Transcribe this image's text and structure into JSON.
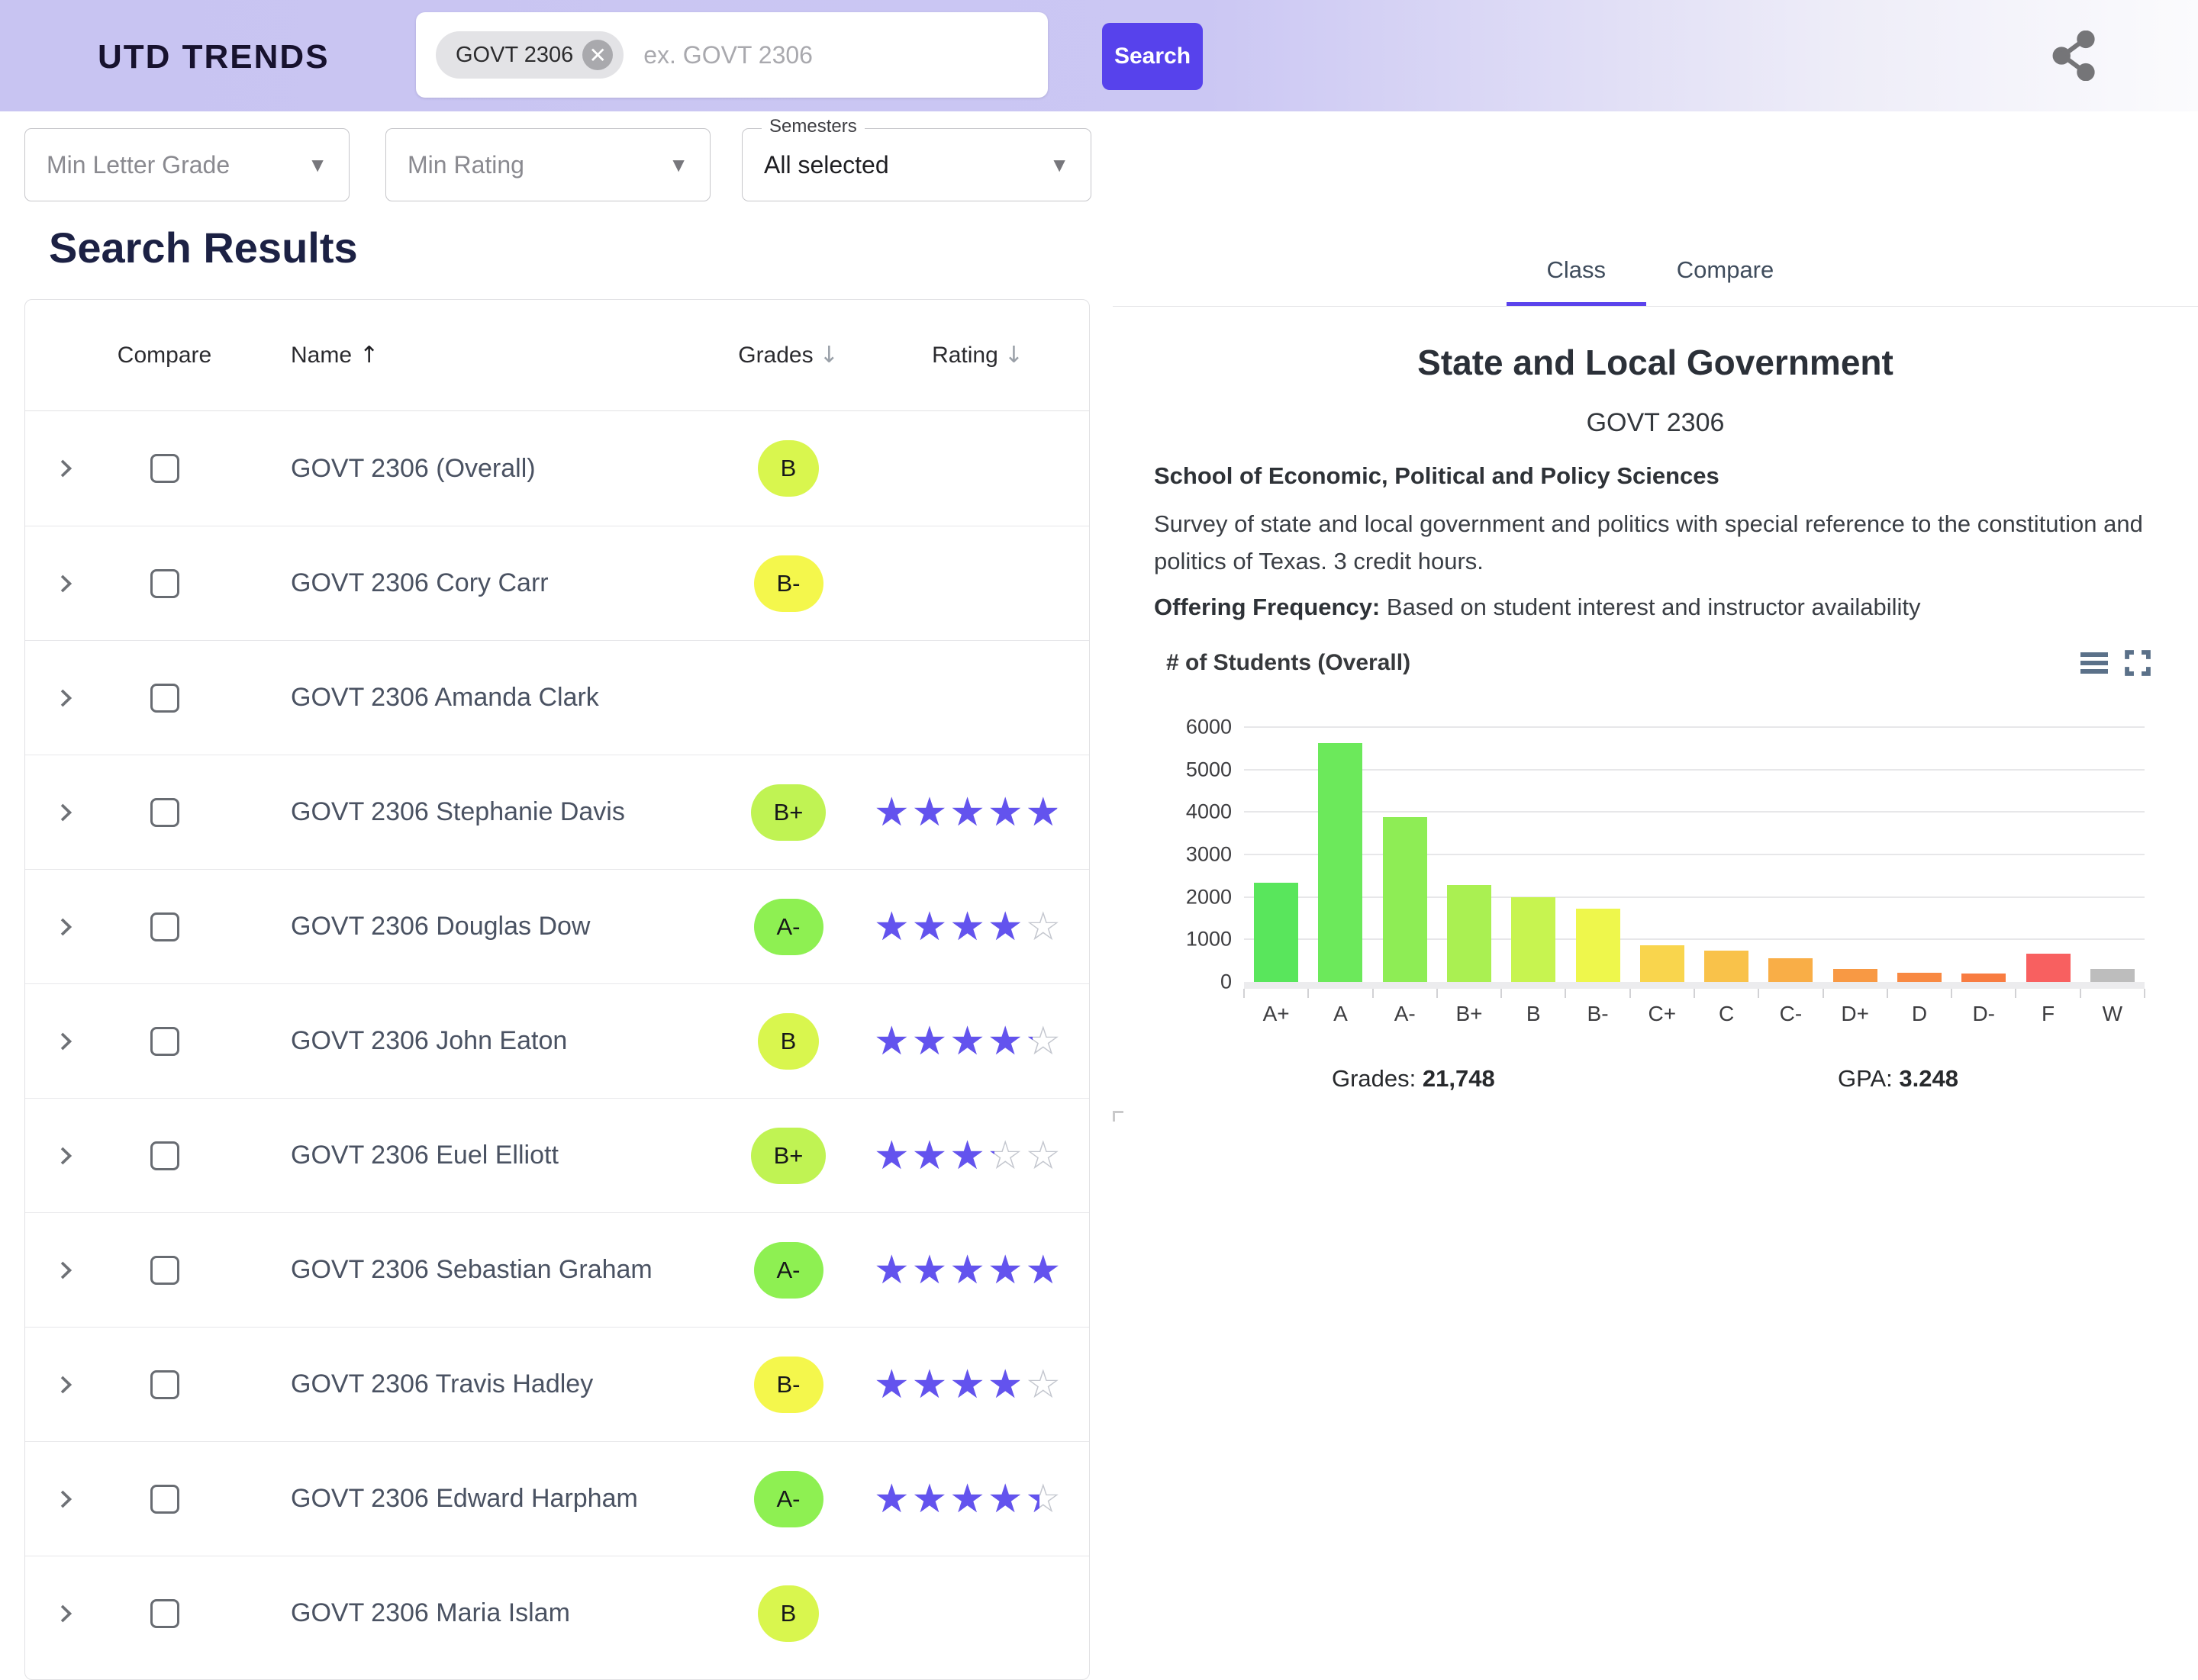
{
  "header": {
    "logo": "UTD TRENDS",
    "search_chip": "GOVT 2306",
    "chip_remove_icon": "close-icon",
    "search_placeholder": "ex. GOVT 2306",
    "search_button": "Search",
    "share_icon": "share-icon"
  },
  "filters": [
    {
      "placeholder": "Min Letter Grade"
    },
    {
      "placeholder": "Min Rating"
    },
    {
      "label": "Semesters",
      "value": "All selected"
    }
  ],
  "results": {
    "title": "Search Results",
    "columns": {
      "compare": "Compare",
      "name": "Name",
      "grades": "Grades",
      "rating": "Rating"
    },
    "sort_asc_arrow": "↑",
    "sort_desc_arrow": "↓",
    "rows": [
      {
        "name": "GOVT 2306 (Overall)",
        "grade": "B",
        "grade_color": "#d9f64e",
        "rating": null
      },
      {
        "name": "GOVT 2306 Cory Carr",
        "grade": "B-",
        "grade_color": "#f4f74c",
        "rating": null
      },
      {
        "name": "GOVT 2306 Amanda Clark",
        "grade": null,
        "grade_color": null,
        "rating": null
      },
      {
        "name": "GOVT 2306 Stephanie Davis",
        "grade": "B+",
        "grade_color": "#c0f353",
        "rating": 4.9
      },
      {
        "name": "GOVT 2306 Douglas Dow",
        "grade": "A-",
        "grade_color": "#8ef052",
        "rating": 4.0
      },
      {
        "name": "GOVT 2306 John Eaton",
        "grade": "B",
        "grade_color": "#d9f64e",
        "rating": 4.2
      },
      {
        "name": "GOVT 2306 Euel Elliott",
        "grade": "B+",
        "grade_color": "#c0f353",
        "rating": 3.2
      },
      {
        "name": "GOVT 2306 Sebastian Graham",
        "grade": "A-",
        "grade_color": "#8ef052",
        "rating": 5.0
      },
      {
        "name": "GOVT 2306 Travis Hadley",
        "grade": "B-",
        "grade_color": "#f4f74c",
        "rating": 3.9
      },
      {
        "name": "GOVT 2306 Edward Harpham",
        "grade": "A-",
        "grade_color": "#8ef052",
        "rating": 4.4
      },
      {
        "name": "GOVT 2306 Maria Islam",
        "grade": "B",
        "grade_color": "#d9f64e",
        "rating": null
      }
    ]
  },
  "detail": {
    "tabs": [
      "Class",
      "Compare"
    ],
    "active_tab": "Class",
    "title": "State and Local Government",
    "course_code": "GOVT 2306",
    "school": "School of Economic, Political and Policy Sciences",
    "description": "Survey of state and local government and politics with special reference to the constitution and politics of Texas. 3 credit hours.",
    "offering_frequency_label": "Offering Frequency:",
    "offering_frequency": "Based on student interest and instructor availability",
    "grades_label": "Grades:",
    "grades_total": "21,748",
    "gpa_label": "GPA:",
    "gpa": "3.248",
    "menu_icon": "hamburger-menu-icon",
    "fullscreen_icon": "fullscreen-icon"
  },
  "chart_data": {
    "type": "bar",
    "title": "# of Students (Overall)",
    "categories": [
      "A+",
      "A",
      "A-",
      "B+",
      "B",
      "B-",
      "C+",
      "C",
      "C-",
      "D+",
      "D",
      "D-",
      "F",
      "W"
    ],
    "values": [
      2340,
      5620,
      3880,
      2280,
      1990,
      1720,
      870,
      730,
      550,
      300,
      220,
      200,
      660,
      300
    ],
    "bar_colors": [
      "#59e65c",
      "#6ce95b",
      "#8eed55",
      "#aaf052",
      "#c7f450",
      "#eef74c",
      "#f9d54d",
      "#f9c24a",
      "#f9ae47",
      "#f89944",
      "#f88942",
      "#f87c41",
      "#f86060",
      "#bdbdbd"
    ],
    "xlabel": "",
    "ylabel": "",
    "ylim": [
      0,
      6000
    ],
    "yticks": [
      0,
      1000,
      2000,
      3000,
      4000,
      5000,
      6000
    ],
    "grid": true,
    "legend": "none"
  },
  "colors": {
    "accent": "#5742ec",
    "tab_underline": "#5b43ec",
    "star_filled": "#6353ee",
    "star_empty": "#c3c6ce",
    "header_gradient_start": "#c8c4f2",
    "header_gradient_end": "#fbfbfd"
  }
}
